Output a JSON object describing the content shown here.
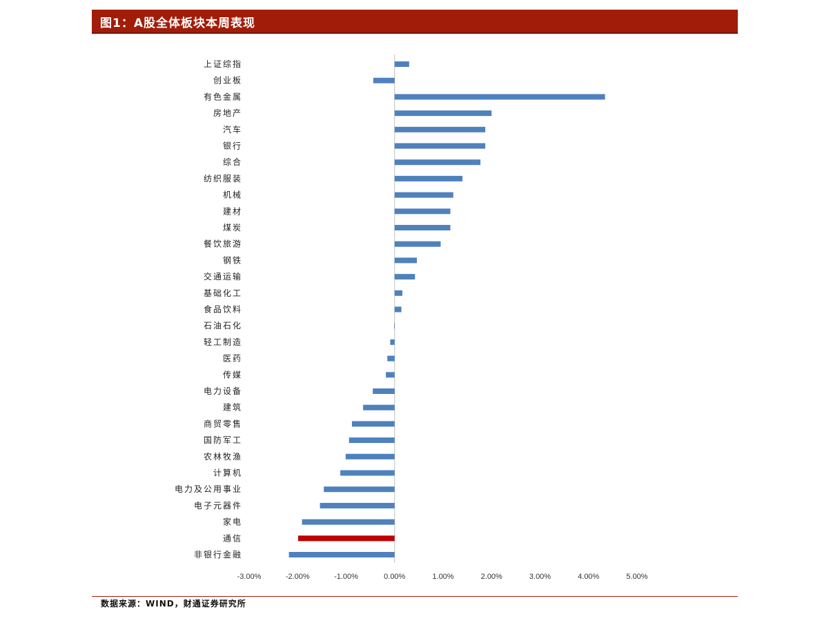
{
  "header": {
    "title": "图1：A股全体板块本周表现"
  },
  "footer": {
    "source": "数据来源：WIND，财通证券研究所"
  },
  "colors": {
    "bar": "#4f81bd",
    "highlight": "#c00000",
    "header": "#a11d0a",
    "axis": "#bfbfbf"
  },
  "chart_data": {
    "type": "bar",
    "orientation": "horizontal",
    "categories": [
      "上证综指",
      "创业板",
      "有色金属",
      "房地产",
      "汽车",
      "银行",
      "综合",
      "纺织服装",
      "机械",
      "建材",
      "煤炭",
      "餐饮旅游",
      "钢铁",
      "交通运输",
      "基础化工",
      "食品饮料",
      "石油石化",
      "轻工制造",
      "医药",
      "传媒",
      "电力设备",
      "建筑",
      "商贸零售",
      "国防军工",
      "农林牧渔",
      "计算机",
      "电力及公用事业",
      "电子元器件",
      "家电",
      "通信",
      "非银行金融"
    ],
    "values": [
      0.3,
      -0.44,
      4.34,
      2.0,
      1.87,
      1.87,
      1.77,
      1.4,
      1.21,
      1.15,
      1.15,
      0.95,
      0.46,
      0.42,
      0.16,
      0.14,
      -0.01,
      -0.09,
      -0.15,
      -0.18,
      -0.45,
      -0.65,
      -0.88,
      -0.94,
      -1.01,
      -1.12,
      -1.46,
      -1.54,
      -1.91,
      -1.99,
      -2.18
    ],
    "highlight_category": "通信",
    "x_ticks": [
      "-3.00%",
      "-2.00%",
      "-1.00%",
      "0.00%",
      "1.00%",
      "2.00%",
      "3.00%",
      "4.00%",
      "5.00%"
    ],
    "xlim": [
      -3,
      5
    ],
    "title": "",
    "xlabel": "",
    "ylabel": ""
  }
}
